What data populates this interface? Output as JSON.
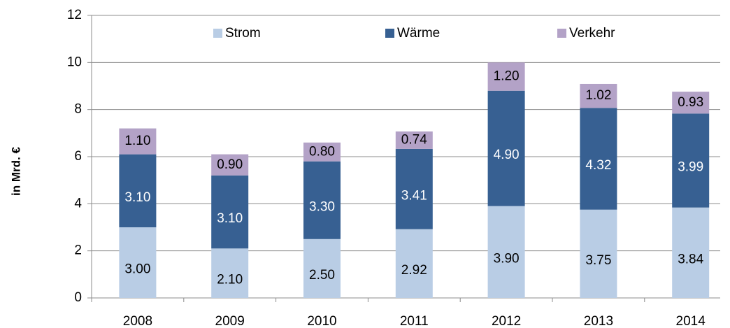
{
  "chart_data": {
    "type": "stacked_bar",
    "y_label": "in Mrd. €",
    "categories": [
      "2008",
      "2009",
      "2010",
      "2011",
      "2012",
      "2013",
      "2014"
    ],
    "series": [
      {
        "name": "Strom",
        "color": "#b9cde5",
        "values": [
          3.0,
          2.1,
          2.5,
          2.92,
          3.9,
          3.75,
          3.84
        ],
        "value_labels": [
          "3.00",
          "2.10",
          "2.50",
          "2.92",
          "3.90",
          "3.75",
          "3.84"
        ]
      },
      {
        "name": "Wärme",
        "color": "#376092",
        "values": [
          3.1,
          3.1,
          3.3,
          3.41,
          4.9,
          4.32,
          3.99
        ],
        "value_labels": [
          "3.10",
          "3.10",
          "3.30",
          "3.41",
          "4.90",
          "4.32",
          "3.99"
        ]
      },
      {
        "name": "Verkehr",
        "color": "#b3a2c7",
        "values": [
          1.1,
          0.9,
          0.8,
          0.74,
          1.2,
          1.02,
          0.93
        ],
        "value_labels": [
          "1.10",
          "0.90",
          "0.80",
          "0.74",
          "1.20",
          "1.02",
          "0.93"
        ]
      }
    ],
    "ylim": [
      0,
      12
    ],
    "yticks": [
      0,
      2,
      4,
      6,
      8,
      10,
      12
    ],
    "grid": true,
    "legend": "top"
  }
}
